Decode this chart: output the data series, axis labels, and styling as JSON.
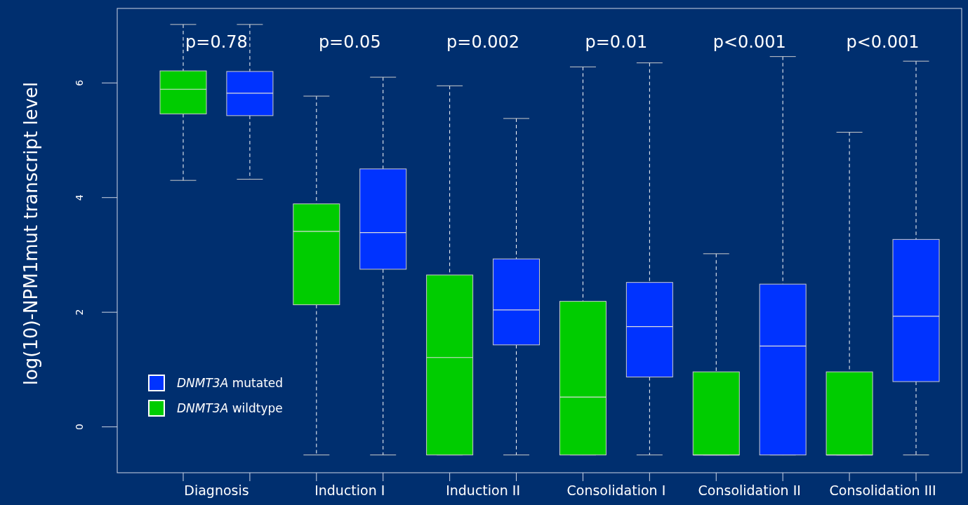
{
  "chart_data": {
    "type": "box",
    "ylabel": "log(10)-NPM1mut transcript level",
    "categories": [
      "Diagnosis",
      "Induction I",
      "Induction II",
      "Consolidation I",
      "Consolidation II",
      "Consolidation III"
    ],
    "ylim": [
      -0.8,
      7.3
    ],
    "yticks": [
      0,
      2,
      4,
      6
    ],
    "legend": "bottom left",
    "grid": false,
    "series": [
      {
        "name": "DNMT3A wildtype",
        "color": "#00cc00",
        "boxes": [
          {
            "low": 4.3,
            "q1": 5.46,
            "median": 5.89,
            "q3": 6.21,
            "high": 7.02
          },
          {
            "low": -0.49,
            "q1": 2.13,
            "median": 3.41,
            "q3": 3.89,
            "high": 5.77
          },
          {
            "low": -0.49,
            "q1": -0.49,
            "median": 1.21,
            "q3": 2.65,
            "high": 5.95
          },
          {
            "low": -0.49,
            "q1": -0.49,
            "median": 0.52,
            "q3": 2.19,
            "high": 6.28
          },
          {
            "low": -0.49,
            "q1": -0.49,
            "median": -0.49,
            "q3": 0.96,
            "high": 3.02
          },
          {
            "low": -0.49,
            "q1": -0.49,
            "median": -0.49,
            "q3": 0.96,
            "high": 5.14
          }
        ]
      },
      {
        "name": "DNMT3A mutated",
        "color": "#0033ff",
        "boxes": [
          {
            "low": 4.32,
            "q1": 5.43,
            "median": 5.82,
            "q3": 6.2,
            "high": 7.02
          },
          {
            "low": -0.49,
            "q1": 2.75,
            "median": 3.39,
            "q3": 4.5,
            "high": 6.1
          },
          {
            "low": -0.49,
            "q1": 1.43,
            "median": 2.04,
            "q3": 2.93,
            "high": 5.38
          },
          {
            "low": -0.49,
            "q1": 0.87,
            "median": 1.75,
            "q3": 2.52,
            "high": 6.35
          },
          {
            "low": -0.49,
            "q1": -0.49,
            "median": 1.41,
            "q3": 2.49,
            "high": 6.46
          },
          {
            "low": -0.49,
            "q1": 0.79,
            "median": 1.93,
            "q3": 3.27,
            "high": 6.38
          }
        ]
      }
    ],
    "annotations": [
      "p=0.78",
      "p=0.05",
      "p=0.002",
      "p=0.01",
      "p<0.001",
      "p<0.001"
    ]
  }
}
